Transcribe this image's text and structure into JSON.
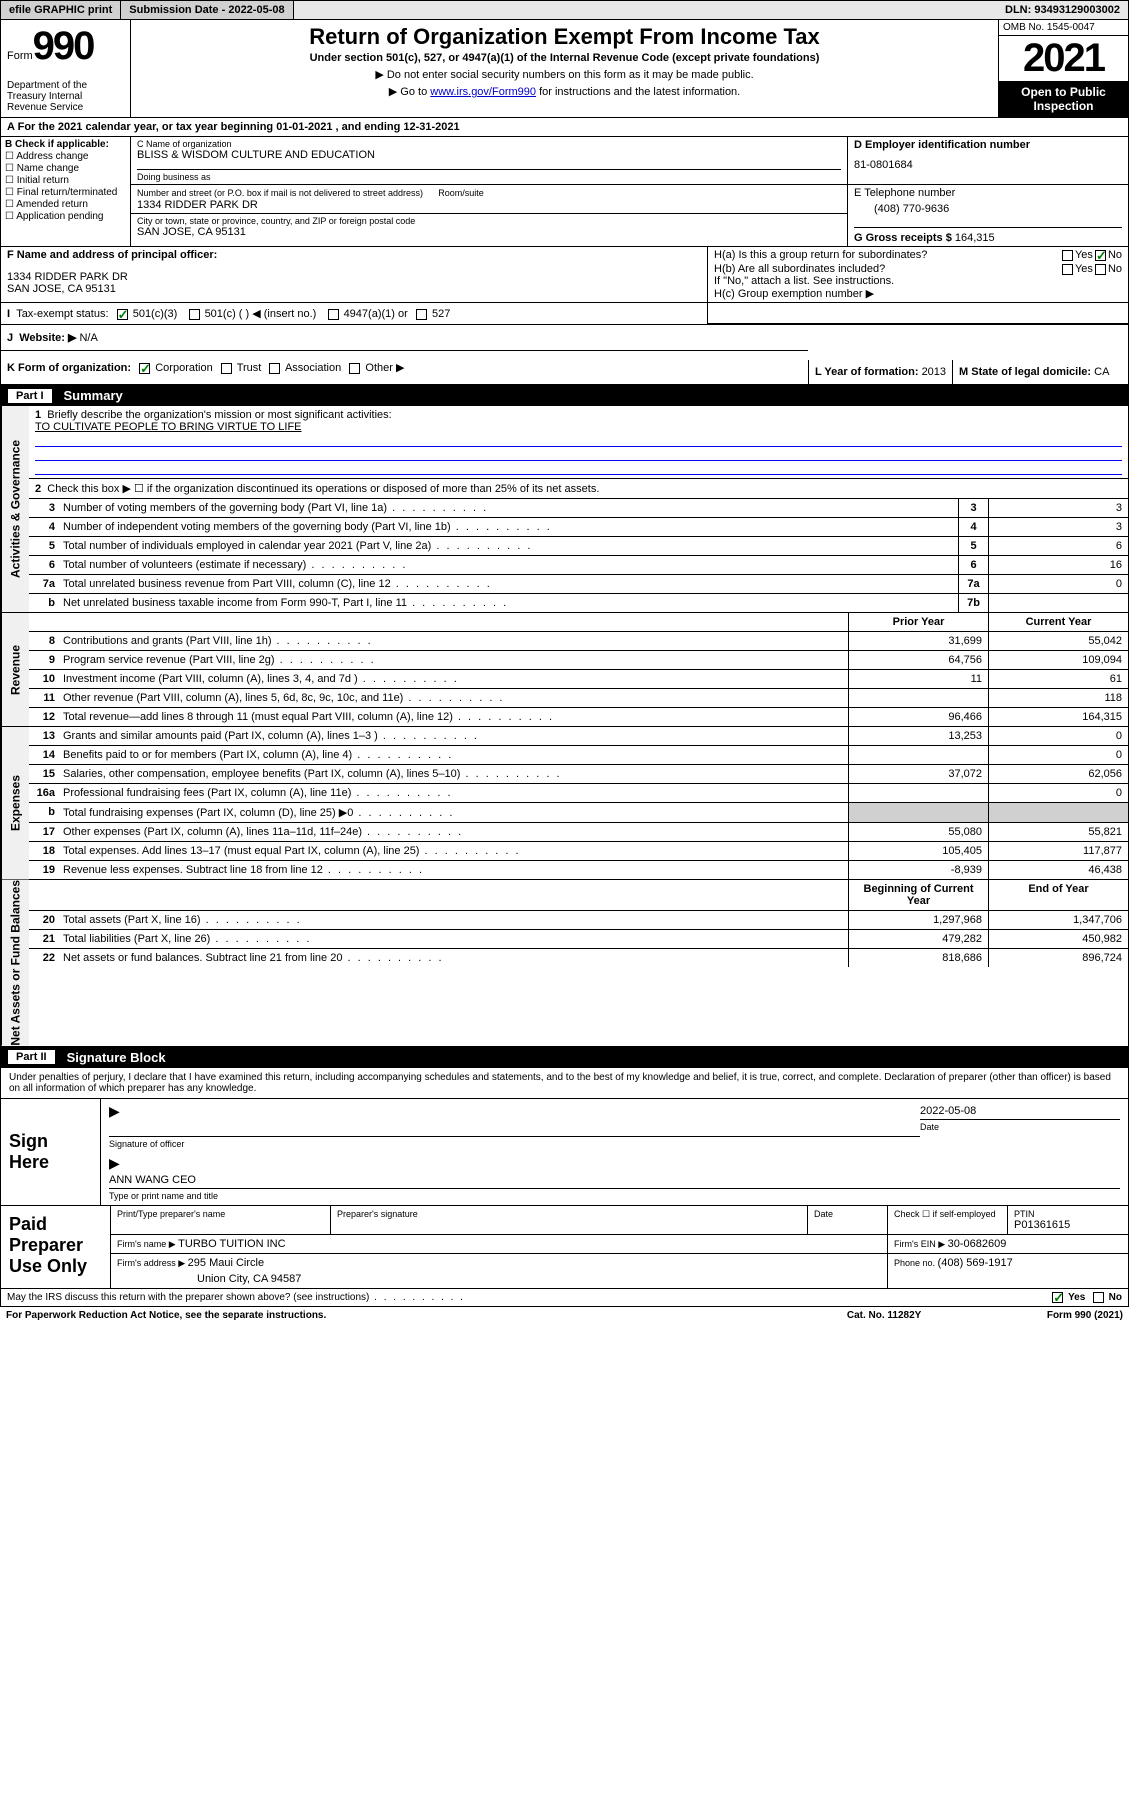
{
  "topbar": {
    "efile": "efile GRAPHIC print",
    "subdate_lbl": "Submission Date - ",
    "subdate": "2022-05-08",
    "dln_lbl": "DLN: ",
    "dln": "93493129003002"
  },
  "header": {
    "form_prefix": "Form",
    "form_no": "990",
    "dept": "Department of the Treasury Internal Revenue Service",
    "title": "Return of Organization Exempt From Income Tax",
    "subtitle": "Under section 501(c), 527, or 4947(a)(1) of the Internal Revenue Code (except private foundations)",
    "note1": "Do not enter social security numbers on this form as it may be made public.",
    "note2_pre": "Go to ",
    "note2_link": "www.irs.gov/Form990",
    "note2_post": " for instructions and the latest information.",
    "omb": "OMB No. 1545-0047",
    "year": "2021",
    "inspect": "Open to Public Inspection"
  },
  "taxyear": {
    "pre": "For the 2021 calendar year, or tax year beginning ",
    "begin": "01-01-2021",
    "mid": " , and ending ",
    "end": "12-31-2021"
  },
  "secB": {
    "lbl": "B Check if applicable:",
    "opts": [
      "Address change",
      "Name change",
      "Initial return",
      "Final return/terminated",
      "Amended return",
      "Application pending"
    ],
    "name_lbl": "C Name of organization",
    "name": "BLISS & WISDOM CULTURE AND EDUCATION",
    "dba_lbl": "Doing business as",
    "addr_lbl": "Number and street (or P.O. box if mail is not delivered to street address)",
    "room_lbl": "Room/suite",
    "addr": "1334 RIDDER PARK DR",
    "city_lbl": "City or town, state or province, country, and ZIP or foreign postal code",
    "city": "SAN JOSE, CA  95131",
    "ein_lbl": "D Employer identification number",
    "ein": "81-0801684",
    "tel_lbl": "E Telephone number",
    "tel": "(408) 770-9636",
    "gross_lbl": "G Gross receipts $ ",
    "gross": "164,315"
  },
  "secF": {
    "lbl": "F Name and address of principal officer:",
    "addr1": "1334 RIDDER PARK DR",
    "addr2": "SAN JOSE, CA  95131"
  },
  "secH": {
    "a": "H(a)  Is this a group return for subordinates?",
    "b": "H(b)  Are all subordinates included?",
    "bnote": "If \"No,\" attach a list. See instructions.",
    "c": "H(c)  Group exemption number ▶",
    "yes": "Yes",
    "no": "No"
  },
  "secI": {
    "lbl": "Tax-exempt status:",
    "o1": "501(c)(3)",
    "o2": "501(c) (  ) ◀ (insert no.)",
    "o3": "4947(a)(1) or",
    "o4": "527"
  },
  "secJ": {
    "lbl": "Website: ▶",
    "val": "N/A"
  },
  "secK": {
    "lbl": "K Form of organization:",
    "o1": "Corporation",
    "o2": "Trust",
    "o3": "Association",
    "o4": "Other ▶"
  },
  "secL": {
    "lbl": "L Year of formation: ",
    "val": "2013"
  },
  "secM": {
    "lbl": "M State of legal domicile: ",
    "val": "CA"
  },
  "part1": {
    "num": "Part I",
    "title": "Summary",
    "l1_pre": "Briefly describe the organization's mission or most significant activities:",
    "l1_val": "TO CULTIVATE PEOPLE TO BRING VIRTUE TO LIFE",
    "l2": "Check this box ▶ ☐  if the organization discontinued its operations or disposed of more than 25% of its net assets.",
    "tab_ag": "Activities & Governance",
    "tab_rev": "Revenue",
    "tab_exp": "Expenses",
    "tab_net": "Net Assets or Fund Balances",
    "hdr_prior": "Prior Year",
    "hdr_curr": "Current Year",
    "hdr_boy": "Beginning of Current Year",
    "hdr_eoy": "End of Year",
    "lines_ag": [
      {
        "n": "3",
        "d": "Number of voting members of the governing body (Part VI, line 1a)",
        "b": "3",
        "v": "3"
      },
      {
        "n": "4",
        "d": "Number of independent voting members of the governing body (Part VI, line 1b)",
        "b": "4",
        "v": "3"
      },
      {
        "n": "5",
        "d": "Total number of individuals employed in calendar year 2021 (Part V, line 2a)",
        "b": "5",
        "v": "6"
      },
      {
        "n": "6",
        "d": "Total number of volunteers (estimate if necessary)",
        "b": "6",
        "v": "16"
      },
      {
        "n": "7a",
        "d": "Total unrelated business revenue from Part VIII, column (C), line 12",
        "b": "7a",
        "v": "0"
      },
      {
        "n": "b",
        "d": "Net unrelated business taxable income from Form 990-T, Part I, line 11",
        "b": "7b",
        "v": ""
      }
    ],
    "lines_rev": [
      {
        "n": "8",
        "d": "Contributions and grants (Part VIII, line 1h)",
        "p": "31,699",
        "c": "55,042"
      },
      {
        "n": "9",
        "d": "Program service revenue (Part VIII, line 2g)",
        "p": "64,756",
        "c": "109,094"
      },
      {
        "n": "10",
        "d": "Investment income (Part VIII, column (A), lines 3, 4, and 7d )",
        "p": "11",
        "c": "61"
      },
      {
        "n": "11",
        "d": "Other revenue (Part VIII, column (A), lines 5, 6d, 8c, 9c, 10c, and 11e)",
        "p": "",
        "c": "118"
      },
      {
        "n": "12",
        "d": "Total revenue—add lines 8 through 11 (must equal Part VIII, column (A), line 12)",
        "p": "96,466",
        "c": "164,315"
      }
    ],
    "lines_exp": [
      {
        "n": "13",
        "d": "Grants and similar amounts paid (Part IX, column (A), lines 1–3 )",
        "p": "13,253",
        "c": "0"
      },
      {
        "n": "14",
        "d": "Benefits paid to or for members (Part IX, column (A), line 4)",
        "p": "",
        "c": "0"
      },
      {
        "n": "15",
        "d": "Salaries, other compensation, employee benefits (Part IX, column (A), lines 5–10)",
        "p": "37,072",
        "c": "62,056"
      },
      {
        "n": "16a",
        "d": "Professional fundraising fees (Part IX, column (A), line 11e)",
        "p": "",
        "c": "0"
      },
      {
        "n": "b",
        "d": "Total fundraising expenses (Part IX, column (D), line 25) ▶0",
        "p": "",
        "c": "",
        "gray": true
      },
      {
        "n": "17",
        "d": "Other expenses (Part IX, column (A), lines 11a–11d, 11f–24e)",
        "p": "55,080",
        "c": "55,821"
      },
      {
        "n": "18",
        "d": "Total expenses. Add lines 13–17 (must equal Part IX, column (A), line 25)",
        "p": "105,405",
        "c": "117,877"
      },
      {
        "n": "19",
        "d": "Revenue less expenses. Subtract line 18 from line 12",
        "p": "-8,939",
        "c": "46,438"
      }
    ],
    "lines_net": [
      {
        "n": "20",
        "d": "Total assets (Part X, line 16)",
        "p": "1,297,968",
        "c": "1,347,706"
      },
      {
        "n": "21",
        "d": "Total liabilities (Part X, line 26)",
        "p": "479,282",
        "c": "450,982"
      },
      {
        "n": "22",
        "d": "Net assets or fund balances. Subtract line 21 from line 20",
        "p": "818,686",
        "c": "896,724"
      }
    ]
  },
  "part2": {
    "num": "Part II",
    "title": "Signature Block",
    "note": "Under penalties of perjury, I declare that I have examined this return, including accompanying schedules and statements, and to the best of my knowledge and belief, it is true, correct, and complete. Declaration of preparer (other than officer) is based on all information of which preparer has any knowledge.",
    "sign_here": "Sign Here",
    "sig_officer": "Signature of officer",
    "sig_date_lbl": "Date",
    "sig_date": "2022-05-08",
    "sig_name": "ANN WANG CEO",
    "sig_name_lbl": "Type or print name and title",
    "prep_lbl": "Paid Preparer Use Only",
    "prep_name_lbl": "Print/Type preparer's name",
    "prep_sig_lbl": "Preparer's signature",
    "prep_date_lbl": "Date",
    "prep_self_lbl": "Check ☐ if self-employed",
    "prep_ptin_lbl": "PTIN",
    "prep_ptin": "P01361615",
    "firm_name_lbl": "Firm's name   ▶ ",
    "firm_name": "TURBO TUITION INC",
    "firm_ein_lbl": "Firm's EIN ▶ ",
    "firm_ein": "30-0682609",
    "firm_addr_lbl": "Firm's address ▶ ",
    "firm_addr": "295 Maui Circle",
    "firm_city": "Union City, CA  94587",
    "firm_phone_lbl": "Phone no. ",
    "firm_phone": "(408) 569-1917"
  },
  "footer": {
    "discuss": "May the IRS discuss this return with the preparer shown above? (see instructions)",
    "yes": "Yes",
    "no": "No",
    "paperwork": "For Paperwork Reduction Act Notice, see the separate instructions.",
    "cat": "Cat. No. 11282Y",
    "form": "Form 990 (2021)"
  }
}
